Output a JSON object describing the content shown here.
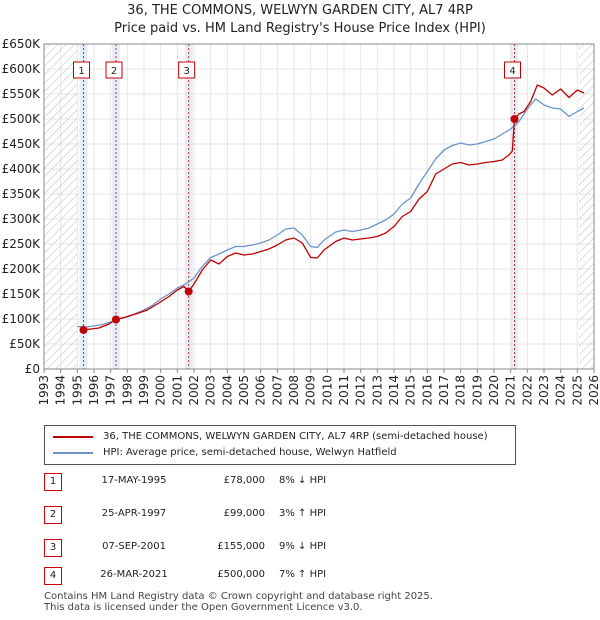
{
  "title": "36, THE COMMONS, WELWYN GARDEN CITY, AL7 4RP",
  "subtitle": "Price paid vs. HM Land Registry's House Price Index (HPI)",
  "chart_data": {
    "type": "line",
    "x_range": [
      1993,
      2026
    ],
    "y_range": [
      0,
      650000
    ],
    "y_ticks": [
      {
        "value": 0,
        "label": "£0"
      },
      {
        "value": 50000,
        "label": "£50K"
      },
      {
        "value": 100000,
        "label": "£100K"
      },
      {
        "value": 150000,
        "label": "£150K"
      },
      {
        "value": 200000,
        "label": "£200K"
      },
      {
        "value": 250000,
        "label": "£250K"
      },
      {
        "value": 300000,
        "label": "£300K"
      },
      {
        "value": 350000,
        "label": "£350K"
      },
      {
        "value": 400000,
        "label": "£400K"
      },
      {
        "value": 450000,
        "label": "£450K"
      },
      {
        "value": 500000,
        "label": "£500K"
      },
      {
        "value": 550000,
        "label": "£550K"
      },
      {
        "value": 600000,
        "label": "£600K"
      },
      {
        "value": 650000,
        "label": "£650K"
      }
    ],
    "x_ticks": [
      "1993",
      "1994",
      "1995",
      "1996",
      "1997",
      "1998",
      "1999",
      "2000",
      "2001",
      "2002",
      "2003",
      "2004",
      "2005",
      "2006",
      "2007",
      "2008",
      "2009",
      "2010",
      "2011",
      "2012",
      "2013",
      "2014",
      "2015",
      "2016",
      "2017",
      "2018",
      "2019",
      "2020",
      "2021",
      "2022",
      "2023",
      "2024",
      "2025",
      "2026"
    ],
    "hatched_ranges": [
      [
        1993,
        1995.0
      ],
      [
        2025.1,
        2026
      ]
    ],
    "series": [
      {
        "name": "36, THE COMMONS, WELWYN GARDEN CITY, AL7 4RP (semi-detached house)",
        "color": "#c00000",
        "points": [
          [
            1995.37,
            78000
          ],
          [
            1995.8,
            80000
          ],
          [
            1996.3,
            82000
          ],
          [
            1996.9,
            90000
          ],
          [
            1997.32,
            99000
          ],
          [
            1997.8,
            103000
          ],
          [
            1998.5,
            110000
          ],
          [
            1999.2,
            118000
          ],
          [
            1999.8,
            130000
          ],
          [
            2000.5,
            145000
          ],
          [
            2001.0,
            158000
          ],
          [
            2001.4,
            165000
          ],
          [
            2001.68,
            155000
          ],
          [
            2002.0,
            170000
          ],
          [
            2002.5,
            198000
          ],
          [
            2003.0,
            218000
          ],
          [
            2003.5,
            210000
          ],
          [
            2004.0,
            225000
          ],
          [
            2004.5,
            232000
          ],
          [
            2005.0,
            228000
          ],
          [
            2005.5,
            230000
          ],
          [
            2006.0,
            235000
          ],
          [
            2006.5,
            240000
          ],
          [
            2007.0,
            248000
          ],
          [
            2007.5,
            258000
          ],
          [
            2008.0,
            262000
          ],
          [
            2008.5,
            252000
          ],
          [
            2009.0,
            223000
          ],
          [
            2009.4,
            222000
          ],
          [
            2009.8,
            238000
          ],
          [
            2010.5,
            255000
          ],
          [
            2011.0,
            262000
          ],
          [
            2011.5,
            258000
          ],
          [
            2012.0,
            260000
          ],
          [
            2012.5,
            262000
          ],
          [
            2013.0,
            265000
          ],
          [
            2013.5,
            272000
          ],
          [
            2014.0,
            285000
          ],
          [
            2014.5,
            305000
          ],
          [
            2015.0,
            315000
          ],
          [
            2015.5,
            340000
          ],
          [
            2016.0,
            355000
          ],
          [
            2016.5,
            390000
          ],
          [
            2017.0,
            400000
          ],
          [
            2017.5,
            410000
          ],
          [
            2018.0,
            413000
          ],
          [
            2018.5,
            408000
          ],
          [
            2019.0,
            410000
          ],
          [
            2019.5,
            413000
          ],
          [
            2020.0,
            415000
          ],
          [
            2020.5,
            418000
          ],
          [
            2020.9,
            428000
          ],
          [
            2021.1,
            436000
          ],
          [
            2021.23,
            500000
          ],
          [
            2021.5,
            510000
          ],
          [
            2021.8,
            515000
          ],
          [
            2022.2,
            535000
          ],
          [
            2022.6,
            568000
          ],
          [
            2023.0,
            562000
          ],
          [
            2023.5,
            548000
          ],
          [
            2024.0,
            560000
          ],
          [
            2024.5,
            543000
          ],
          [
            2025.0,
            558000
          ],
          [
            2025.4,
            552000
          ]
        ]
      },
      {
        "name": "HPI: Average price, semi-detached house, Welwyn Hatfield",
        "color": "#6b93c9",
        "points": [
          [
            1995.0,
            85000
          ],
          [
            1995.5,
            84000
          ],
          [
            1996.0,
            86000
          ],
          [
            1996.5,
            89000
          ],
          [
            1997.0,
            94000
          ],
          [
            1997.5,
            100000
          ],
          [
            1998.0,
            104000
          ],
          [
            1998.5,
            111000
          ],
          [
            1999.0,
            118000
          ],
          [
            1999.5,
            127000
          ],
          [
            2000.0,
            140000
          ],
          [
            2000.5,
            150000
          ],
          [
            2001.0,
            162000
          ],
          [
            2001.5,
            170000
          ],
          [
            2002.0,
            182000
          ],
          [
            2002.5,
            205000
          ],
          [
            2003.0,
            223000
          ],
          [
            2003.5,
            230000
          ],
          [
            2004.0,
            238000
          ],
          [
            2004.5,
            245000
          ],
          [
            2005.0,
            245000
          ],
          [
            2005.5,
            248000
          ],
          [
            2006.0,
            252000
          ],
          [
            2006.5,
            258000
          ],
          [
            2007.0,
            268000
          ],
          [
            2007.5,
            280000
          ],
          [
            2008.0,
            282000
          ],
          [
            2008.5,
            268000
          ],
          [
            2009.0,
            245000
          ],
          [
            2009.4,
            243000
          ],
          [
            2009.8,
            258000
          ],
          [
            2010.5,
            274000
          ],
          [
            2011.0,
            278000
          ],
          [
            2011.5,
            275000
          ],
          [
            2012.0,
            278000
          ],
          [
            2012.5,
            282000
          ],
          [
            2013.0,
            290000
          ],
          [
            2013.5,
            298000
          ],
          [
            2014.0,
            310000
          ],
          [
            2014.5,
            330000
          ],
          [
            2015.0,
            342000
          ],
          [
            2015.5,
            370000
          ],
          [
            2016.0,
            395000
          ],
          [
            2016.5,
            420000
          ],
          [
            2017.0,
            438000
          ],
          [
            2017.5,
            447000
          ],
          [
            2018.0,
            452000
          ],
          [
            2018.5,
            448000
          ],
          [
            2019.0,
            450000
          ],
          [
            2019.5,
            455000
          ],
          [
            2020.0,
            460000
          ],
          [
            2020.5,
            470000
          ],
          [
            2021.0,
            480000
          ],
          [
            2021.5,
            495000
          ],
          [
            2022.0,
            520000
          ],
          [
            2022.5,
            540000
          ],
          [
            2023.0,
            528000
          ],
          [
            2023.5,
            522000
          ],
          [
            2024.0,
            520000
          ],
          [
            2024.5,
            505000
          ],
          [
            2025.0,
            515000
          ],
          [
            2025.4,
            522000
          ]
        ]
      }
    ],
    "sales": [
      {
        "id": "1",
        "date": "17-MAY-1995",
        "x": 1995.37,
        "price_value": 78000,
        "price": "£78,000",
        "hpi": "8% ↓ HPI"
      },
      {
        "id": "2",
        "date": "25-APR-1997",
        "x": 1997.32,
        "price_value": 99000,
        "price": "£99,000",
        "hpi": "3% ↑ HPI"
      },
      {
        "id": "3",
        "date": "07-SEP-2001",
        "x": 2001.68,
        "price_value": 155000,
        "price": "£155,000",
        "hpi": "9% ↓ HPI"
      },
      {
        "id": "4",
        "date": "26-MAR-2021",
        "x": 2021.23,
        "price_value": 500000,
        "price": "£500,000",
        "hpi": "7% ↑ HPI"
      }
    ]
  },
  "legend": {
    "property_label": "36, THE COMMONS, WELWYN GARDEN CITY, AL7 4RP (semi-detached house)",
    "hpi_label": "HPI: Average price, semi-detached house, Welwyn Hatfield"
  },
  "footer": {
    "line1": "Contains HM Land Registry data © Crown copyright and database right 2025.",
    "line2": "This data is licensed under the Open Government Licence v3.0."
  },
  "colors": {
    "property": "#c00000",
    "hpi": "#6b93c9",
    "grid": "#e6e6e6",
    "band": "#dde6f3"
  }
}
